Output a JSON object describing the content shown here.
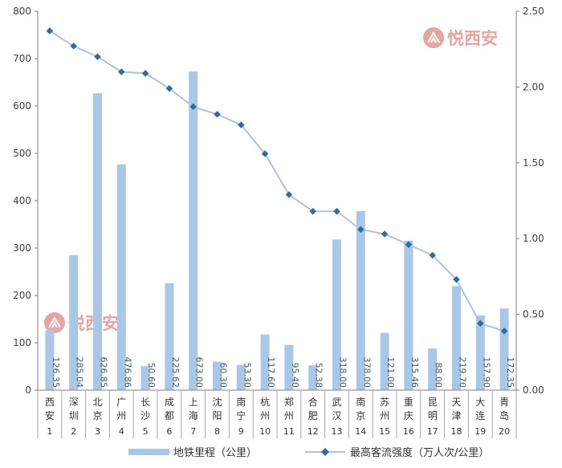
{
  "chart_data": {
    "type": "bar",
    "categories": [
      "西安",
      "深圳",
      "北京",
      "广州",
      "长沙",
      "成都",
      "上海",
      "沈阳",
      "南宁",
      "杭州",
      "郑州",
      "合肥",
      "武汉",
      "南京",
      "苏州",
      "重庆",
      "昆明",
      "天津",
      "大连",
      "青岛"
    ],
    "rank_labels": [
      "1",
      "2",
      "3",
      "4",
      "5",
      "6",
      "7",
      "8",
      "9",
      "10",
      "11",
      "12",
      "13",
      "14",
      "15",
      "16",
      "17",
      "18",
      "19",
      "20"
    ],
    "series": [
      {
        "name": "地铁里程（公里）",
        "type": "bar",
        "axis": "left",
        "values": [
          126.35,
          285.04,
          626.85,
          476.86,
          50.6,
          225.62,
          673.0,
          60.3,
          53.3,
          117.6,
          95.4,
          52.38,
          318.0,
          378.0,
          121.0,
          315.46,
          88.0,
          219.7,
          157.9,
          172.35
        ],
        "labels": [
          "126.35",
          "285.04",
          "626.85",
          "476.86",
          "50.60",
          "225.62",
          "673.00",
          "60.30",
          "53.30",
          "117.60",
          "95.40",
          "52.38",
          "318.00",
          "378.00",
          "121.00",
          "315.46",
          "88.00",
          "219.70",
          "157.90",
          "172.35"
        ],
        "color": "#a9c7e6"
      },
      {
        "name": "最高客流强度（万人次/公里）",
        "type": "line",
        "axis": "right",
        "values": [
          2.37,
          2.27,
          2.2,
          2.1,
          2.09,
          1.99,
          1.87,
          1.82,
          1.75,
          1.56,
          1.29,
          1.18,
          1.18,
          1.06,
          1.03,
          0.96,
          0.89,
          0.73,
          0.44,
          0.39
        ],
        "color": "#aec3d8",
        "marker_color": "#2f6aa0"
      }
    ],
    "y_left": {
      "ylim": [
        0,
        800
      ],
      "ticks": [
        "0",
        "100",
        "200",
        "300",
        "400",
        "500",
        "600",
        "700",
        "800"
      ]
    },
    "y_right": {
      "ylim": [
        0,
        2.5
      ],
      "ticks": [
        "0.00",
        "0.50",
        "1.00",
        "1.50",
        "2.00",
        "2.50"
      ]
    },
    "grid": false,
    "legend_position": "bottom"
  },
  "watermark": {
    "text": "悦西安",
    "color": "#e8a3a3"
  }
}
